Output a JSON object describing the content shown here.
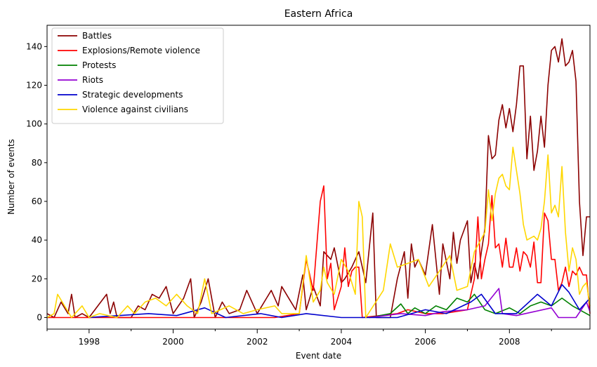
{
  "chart_data": {
    "type": "line",
    "title": "Eastern Africa",
    "xlabel": "Event date",
    "ylabel": "Number of events",
    "xlim": [
      "1997-01",
      "2009-12"
    ],
    "ylim": [
      -6,
      151
    ],
    "x_ticks": [
      "1998",
      "2000",
      "2002",
      "2004",
      "2006",
      "2008"
    ],
    "y_ticks": [
      0,
      20,
      40,
      60,
      80,
      100,
      120,
      140
    ],
    "grid": false,
    "legend_position": "upper-left",
    "series": [
      {
        "name": "Battles",
        "color": "#8b0000",
        "points": [
          [
            "1997-01",
            2
          ],
          [
            "1997-03",
            0
          ],
          [
            "1997-05",
            8
          ],
          [
            "1997-07",
            2
          ],
          [
            "1997-08",
            12
          ],
          [
            "1997-09",
            0
          ],
          [
            "1997-11",
            2
          ],
          [
            "1998-01",
            0
          ],
          [
            "1998-06",
            12
          ],
          [
            "1998-07",
            2
          ],
          [
            "1998-08",
            8
          ],
          [
            "1998-09",
            0
          ],
          [
            "1999-01",
            0
          ],
          [
            "1999-03",
            6
          ],
          [
            "1999-05",
            4
          ],
          [
            "1999-07",
            12
          ],
          [
            "1999-09",
            10
          ],
          [
            "1999-11",
            16
          ],
          [
            "2000-01",
            2
          ],
          [
            "2000-04",
            10
          ],
          [
            "2000-06",
            20
          ],
          [
            "2000-07",
            0
          ],
          [
            "2000-09",
            8
          ],
          [
            "2000-11",
            20
          ],
          [
            "2001-01",
            0
          ],
          [
            "2001-03",
            8
          ],
          [
            "2001-05",
            2
          ],
          [
            "2001-08",
            4
          ],
          [
            "2001-10",
            14
          ],
          [
            "2002-01",
            2
          ],
          [
            "2002-05",
            14
          ],
          [
            "2002-07",
            6
          ],
          [
            "2002-08",
            16
          ],
          [
            "2002-10",
            10
          ],
          [
            "2002-12",
            4
          ],
          [
            "2003-02",
            22
          ],
          [
            "2003-03",
            4
          ],
          [
            "2003-05",
            16
          ],
          [
            "2003-07",
            6
          ],
          [
            "2003-08",
            34
          ],
          [
            "2003-10",
            30
          ],
          [
            "2003-11",
            36
          ],
          [
            "2004-01",
            18
          ],
          [
            "2004-02",
            20
          ],
          [
            "2004-04",
            26
          ],
          [
            "2004-06",
            34
          ],
          [
            "2004-08",
            18
          ],
          [
            "2004-10",
            54
          ],
          [
            "2004-11",
            0
          ],
          [
            "2005-01",
            0
          ],
          [
            "2005-03",
            0
          ],
          [
            "2005-05",
            20
          ],
          [
            "2005-07",
            34
          ],
          [
            "2005-08",
            10
          ],
          [
            "2005-09",
            38
          ],
          [
            "2005-10",
            26
          ],
          [
            "2005-11",
            30
          ],
          [
            "2006-01",
            22
          ],
          [
            "2006-03",
            48
          ],
          [
            "2006-05",
            12
          ],
          [
            "2006-06",
            38
          ],
          [
            "2006-08",
            20
          ],
          [
            "2006-09",
            44
          ],
          [
            "2006-10",
            28
          ],
          [
            "2006-11",
            40
          ],
          [
            "2007-01",
            50
          ],
          [
            "2007-02",
            18
          ],
          [
            "2007-03",
            28
          ],
          [
            "2007-04",
            20
          ],
          [
            "2007-05",
            34
          ],
          [
            "2007-06",
            46
          ],
          [
            "2007-07",
            94
          ],
          [
            "2007-08",
            82
          ],
          [
            "2007-09",
            84
          ],
          [
            "2007-10",
            102
          ],
          [
            "2007-11",
            110
          ],
          [
            "2007-12",
            98
          ],
          [
            "2008-01",
            108
          ],
          [
            "2008-02",
            96
          ],
          [
            "2008-03",
            110
          ],
          [
            "2008-04",
            130
          ],
          [
            "2008-05",
            130
          ],
          [
            "2008-06",
            82
          ],
          [
            "2008-07",
            104
          ],
          [
            "2008-08",
            76
          ],
          [
            "2008-09",
            86
          ],
          [
            "2008-10",
            104
          ],
          [
            "2008-11",
            88
          ],
          [
            "2008-12",
            120
          ],
          [
            "2009-01",
            138
          ],
          [
            "2009-02",
            140
          ],
          [
            "2009-03",
            132
          ],
          [
            "2009-04",
            144
          ],
          [
            "2009-05",
            130
          ],
          [
            "2009-06",
            132
          ],
          [
            "2009-07",
            138
          ],
          [
            "2009-08",
            122
          ],
          [
            "2009-09",
            60
          ],
          [
            "2009-10",
            32
          ],
          [
            "2009-11",
            52
          ],
          [
            "2009-12",
            52
          ]
        ]
      },
      {
        "name": "Explosions/Remote violence",
        "color": "#ff0000",
        "points": [
          [
            "1997-01",
            0
          ],
          [
            "2002-06",
            0
          ],
          [
            "2003-01",
            2
          ],
          [
            "2003-03",
            30
          ],
          [
            "2003-05",
            14
          ],
          [
            "2003-07",
            60
          ],
          [
            "2003-08",
            68
          ],
          [
            "2003-09",
            20
          ],
          [
            "2003-10",
            28
          ],
          [
            "2003-11",
            4
          ],
          [
            "2004-01",
            16
          ],
          [
            "2004-02",
            36
          ],
          [
            "2004-03",
            16
          ],
          [
            "2004-04",
            24
          ],
          [
            "2004-05",
            26
          ],
          [
            "2004-06",
            26
          ],
          [
            "2004-07",
            0
          ],
          [
            "2005-05",
            2
          ],
          [
            "2005-08",
            4
          ],
          [
            "2006-01",
            2
          ],
          [
            "2006-06",
            2
          ],
          [
            "2007-01",
            4
          ],
          [
            "2007-03",
            20
          ],
          [
            "2007-04",
            52
          ],
          [
            "2007-05",
            20
          ],
          [
            "2007-06",
            30
          ],
          [
            "2007-07",
            38
          ],
          [
            "2007-08",
            63
          ],
          [
            "2007-09",
            36
          ],
          [
            "2007-10",
            38
          ],
          [
            "2007-11",
            26
          ],
          [
            "2007-12",
            41
          ],
          [
            "2008-01",
            26
          ],
          [
            "2008-02",
            26
          ],
          [
            "2008-03",
            36
          ],
          [
            "2008-04",
            24
          ],
          [
            "2008-05",
            34
          ],
          [
            "2008-06",
            32
          ],
          [
            "2008-07",
            26
          ],
          [
            "2008-08",
            39
          ],
          [
            "2008-09",
            18
          ],
          [
            "2008-10",
            18
          ],
          [
            "2008-11",
            54
          ],
          [
            "2008-12",
            50
          ],
          [
            "2009-01",
            30
          ],
          [
            "2009-02",
            30
          ],
          [
            "2009-03",
            14
          ],
          [
            "2009-04",
            18
          ],
          [
            "2009-05",
            26
          ],
          [
            "2009-06",
            16
          ],
          [
            "2009-07",
            24
          ],
          [
            "2009-08",
            22
          ],
          [
            "2009-09",
            26
          ],
          [
            "2009-10",
            22
          ],
          [
            "2009-11",
            22
          ],
          [
            "2009-12",
            2
          ]
        ]
      },
      {
        "name": "Protests",
        "color": "#008000",
        "points": [
          [
            "2004-09",
            0
          ],
          [
            "2005-03",
            2
          ],
          [
            "2005-06",
            7
          ],
          [
            "2005-08",
            2
          ],
          [
            "2005-10",
            5
          ],
          [
            "2006-01",
            2
          ],
          [
            "2006-04",
            6
          ],
          [
            "2006-07",
            4
          ],
          [
            "2006-10",
            10
          ],
          [
            "2007-01",
            8
          ],
          [
            "2007-03",
            12
          ],
          [
            "2007-06",
            4
          ],
          [
            "2007-09",
            2
          ],
          [
            "2008-01",
            5
          ],
          [
            "2008-04",
            2
          ],
          [
            "2008-07",
            6
          ],
          [
            "2008-10",
            8
          ],
          [
            "2009-01",
            6
          ],
          [
            "2009-04",
            10
          ],
          [
            "2009-07",
            6
          ],
          [
            "2009-10",
            3
          ],
          [
            "2009-12",
            1
          ]
        ]
      },
      {
        "name": "Riots",
        "color": "#9400d3",
        "points": [
          [
            "2004-09",
            0
          ],
          [
            "2005-06",
            2
          ],
          [
            "2006-01",
            1
          ],
          [
            "2006-06",
            3
          ],
          [
            "2007-01",
            4
          ],
          [
            "2007-06",
            6
          ],
          [
            "2007-10",
            15
          ],
          [
            "2007-11",
            2
          ],
          [
            "2008-03",
            1
          ],
          [
            "2008-08",
            3
          ],
          [
            "2009-01",
            5
          ],
          [
            "2009-03",
            0
          ],
          [
            "2009-08",
            0
          ],
          [
            "2009-11",
            8
          ],
          [
            "2009-12",
            3
          ]
        ]
      },
      {
        "name": "Strategic developments",
        "color": "#0000cd",
        "points": [
          [
            "1998-01",
            0
          ],
          [
            "1999-06",
            2
          ],
          [
            "2000-02",
            1
          ],
          [
            "2000-10",
            5
          ],
          [
            "2001-04",
            0
          ],
          [
            "2002-02",
            2
          ],
          [
            "2002-08",
            0
          ],
          [
            "2003-03",
            2
          ],
          [
            "2004-01",
            0
          ],
          [
            "2005-05",
            0
          ],
          [
            "2006-01",
            4
          ],
          [
            "2006-07",
            2
          ],
          [
            "2007-02",
            8
          ],
          [
            "2007-05",
            12
          ],
          [
            "2007-09",
            2
          ],
          [
            "2008-03",
            2
          ],
          [
            "2008-09",
            12
          ],
          [
            "2009-01",
            6
          ],
          [
            "2009-04",
            17
          ],
          [
            "2009-06",
            13
          ],
          [
            "2009-09",
            4
          ],
          [
            "2009-12",
            10
          ]
        ]
      },
      {
        "name": "Violence against civilians",
        "color": "#ffd700",
        "points": [
          [
            "1997-01",
            0
          ],
          [
            "1997-03",
            2
          ],
          [
            "1997-04",
            12
          ],
          [
            "1997-06",
            6
          ],
          [
            "1997-08",
            0
          ],
          [
            "1997-11",
            6
          ],
          [
            "1998-01",
            0
          ],
          [
            "1998-04",
            2
          ],
          [
            "1998-09",
            0
          ],
          [
            "1998-12",
            6
          ],
          [
            "1999-02",
            2
          ],
          [
            "1999-05",
            8
          ],
          [
            "1999-08",
            10
          ],
          [
            "1999-11",
            6
          ],
          [
            "2000-02",
            12
          ],
          [
            "2000-05",
            6
          ],
          [
            "2000-08",
            2
          ],
          [
            "2000-10",
            20
          ],
          [
            "2000-12",
            2
          ],
          [
            "2001-05",
            6
          ],
          [
            "2001-09",
            2
          ],
          [
            "2002-01",
            4
          ],
          [
            "2002-06",
            6
          ],
          [
            "2002-08",
            2
          ],
          [
            "2003-01",
            2
          ],
          [
            "2003-03",
            32
          ],
          [
            "2003-05",
            8
          ],
          [
            "2003-07",
            14
          ],
          [
            "2003-08",
            26
          ],
          [
            "2003-09",
            18
          ],
          [
            "2003-11",
            12
          ],
          [
            "2004-01",
            30
          ],
          [
            "2004-03",
            24
          ],
          [
            "2004-05",
            12
          ],
          [
            "2004-06",
            60
          ],
          [
            "2004-07",
            52
          ],
          [
            "2004-08",
            0
          ],
          [
            "2005-01",
            14
          ],
          [
            "2005-03",
            38
          ],
          [
            "2005-05",
            26
          ],
          [
            "2005-08",
            28
          ],
          [
            "2005-11",
            30
          ],
          [
            "2006-02",
            16
          ],
          [
            "2006-05",
            24
          ],
          [
            "2006-08",
            32
          ],
          [
            "2006-10",
            14
          ],
          [
            "2007-01",
            16
          ],
          [
            "2007-03",
            34
          ],
          [
            "2007-06",
            44
          ],
          [
            "2007-07",
            66
          ],
          [
            "2007-08",
            50
          ],
          [
            "2007-09",
            64
          ],
          [
            "2007-10",
            72
          ],
          [
            "2007-11",
            74
          ],
          [
            "2007-12",
            68
          ],
          [
            "2008-01",
            66
          ],
          [
            "2008-02",
            88
          ],
          [
            "2008-04",
            64
          ],
          [
            "2008-05",
            48
          ],
          [
            "2008-06",
            40
          ],
          [
            "2008-08",
            42
          ],
          [
            "2008-09",
            40
          ],
          [
            "2008-10",
            46
          ],
          [
            "2008-11",
            60
          ],
          [
            "2008-12",
            84
          ],
          [
            "2009-01",
            54
          ],
          [
            "2009-02",
            58
          ],
          [
            "2009-03",
            52
          ],
          [
            "2009-04",
            78
          ],
          [
            "2009-05",
            44
          ],
          [
            "2009-06",
            24
          ],
          [
            "2009-07",
            36
          ],
          [
            "2009-08",
            30
          ],
          [
            "2009-09",
            12
          ],
          [
            "2009-10",
            16
          ],
          [
            "2009-11",
            18
          ],
          [
            "2009-12",
            6
          ]
        ]
      }
    ]
  }
}
